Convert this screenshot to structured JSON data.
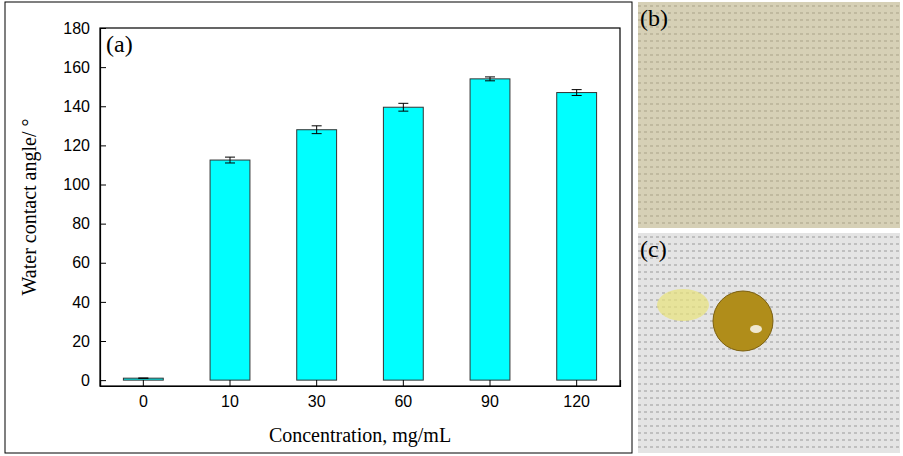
{
  "chart_data": {
    "type": "bar",
    "annotations": [
      "(a)"
    ],
    "x_label": "Concentration, mg/mL",
    "y_label": "Water contact angle/ °",
    "categories": [
      "0",
      "10",
      "30",
      "60",
      "90",
      "120"
    ],
    "values": [
      1,
      112.5,
      128,
      139.5,
      154,
      147
    ],
    "errors": [
      0,
      1.5,
      2,
      2,
      1,
      1.5
    ],
    "color": "#00ffff",
    "ylim": [
      -3,
      180
    ],
    "yticks": [
      0,
      20,
      40,
      60,
      80,
      100,
      120,
      140,
      160,
      180
    ],
    "grid": false
  },
  "photos": [
    {
      "label": "(b)"
    },
    {
      "label": "(c)"
    }
  ]
}
